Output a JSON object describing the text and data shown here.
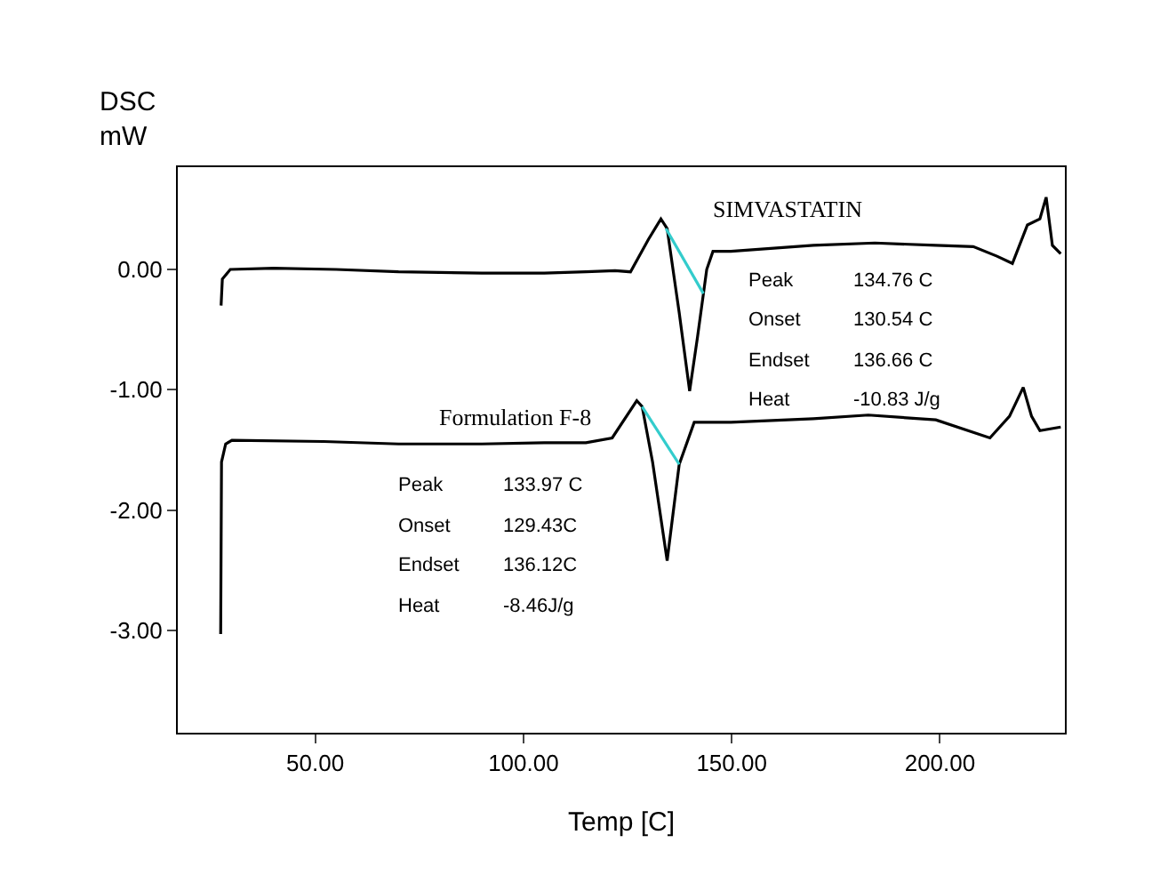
{
  "chart_data": {
    "type": "line",
    "xlabel": "Temp [C]",
    "ylabel": "DSC\nmW",
    "xlim": [
      17,
      230
    ],
    "ylim": [
      -3.85,
      0.85
    ],
    "xticks": [
      {
        "value": 50,
        "label": "50.00"
      },
      {
        "value": 100,
        "label": "100.00"
      },
      {
        "value": 150,
        "label": "150.00"
      },
      {
        "value": 200,
        "label": "200.00"
      }
    ],
    "yticks": [
      {
        "value": 0,
        "label": "0.00"
      },
      {
        "value": -1,
        "label": "-1.00"
      },
      {
        "value": -2,
        "label": "-2.00"
      },
      {
        "value": -3,
        "label": "-3.00"
      }
    ],
    "grid": false,
    "legend": false,
    "marker": "none",
    "line_style": "solid",
    "series": [
      {
        "name": "SIMVASTATIN",
        "color": "#000000",
        "x": [
          27.4,
          27.7,
          29.6,
          40,
          55,
          70,
          90,
          105,
          115,
          122,
          125.7,
          130,
          133,
          134.5,
          137.4,
          139.9,
          141.8,
          144,
          145.5,
          149.8,
          169.6,
          184.4,
          199,
          208,
          213.7,
          217.4,
          221,
          224,
          225.5,
          227,
          229
        ],
        "values": [
          -0.3,
          -0.08,
          0.0,
          0.01,
          0.0,
          -0.02,
          -0.03,
          -0.03,
          -0.02,
          -0.01,
          -0.02,
          0.25,
          0.42,
          0.34,
          -0.36,
          -1.01,
          -0.56,
          0.0,
          0.15,
          0.15,
          0.2,
          0.22,
          0.2,
          0.19,
          0.11,
          0.05,
          0.37,
          0.42,
          0.6,
          0.2,
          0.13
        ]
      },
      {
        "name": "Formulation F-8",
        "color": "#000000",
        "x": [
          27.3,
          27.5,
          28.5,
          30,
          52,
          70,
          90,
          105,
          115,
          121.3,
          127.2,
          128.5,
          131,
          134.5,
          137.4,
          141,
          149.8,
          169.6,
          182.8,
          199,
          212,
          216.7,
          220,
          222,
          224,
          229
        ],
        "values": [
          -3.03,
          -1.6,
          -1.45,
          -1.42,
          -1.43,
          -1.45,
          -1.45,
          -1.44,
          -1.44,
          -1.4,
          -1.09,
          -1.14,
          -1.6,
          -2.42,
          -1.62,
          -1.27,
          -1.27,
          -1.24,
          -1.21,
          -1.25,
          -1.4,
          -1.22,
          -0.98,
          -1.22,
          -1.34,
          -1.31
        ]
      },
      {
        "color": "#33cccc",
        "x": [
          134.2,
          143.2
        ],
        "values": [
          0.34,
          -0.2
        ]
      },
      {
        "color": "#33cccc",
        "x": [
          128.5,
          137.4
        ],
        "values": [
          -1.14,
          -1.62
        ]
      }
    ],
    "annotations": [
      "Peak 134.76 C",
      "Onset 130.54 C",
      "Endset 136.66 C",
      "Heat -10.83 J/g",
      "Peak 133.97 C",
      "Onset 129.43C",
      "Endset 136.12C",
      "Heat -8.46J/g"
    ]
  }
}
